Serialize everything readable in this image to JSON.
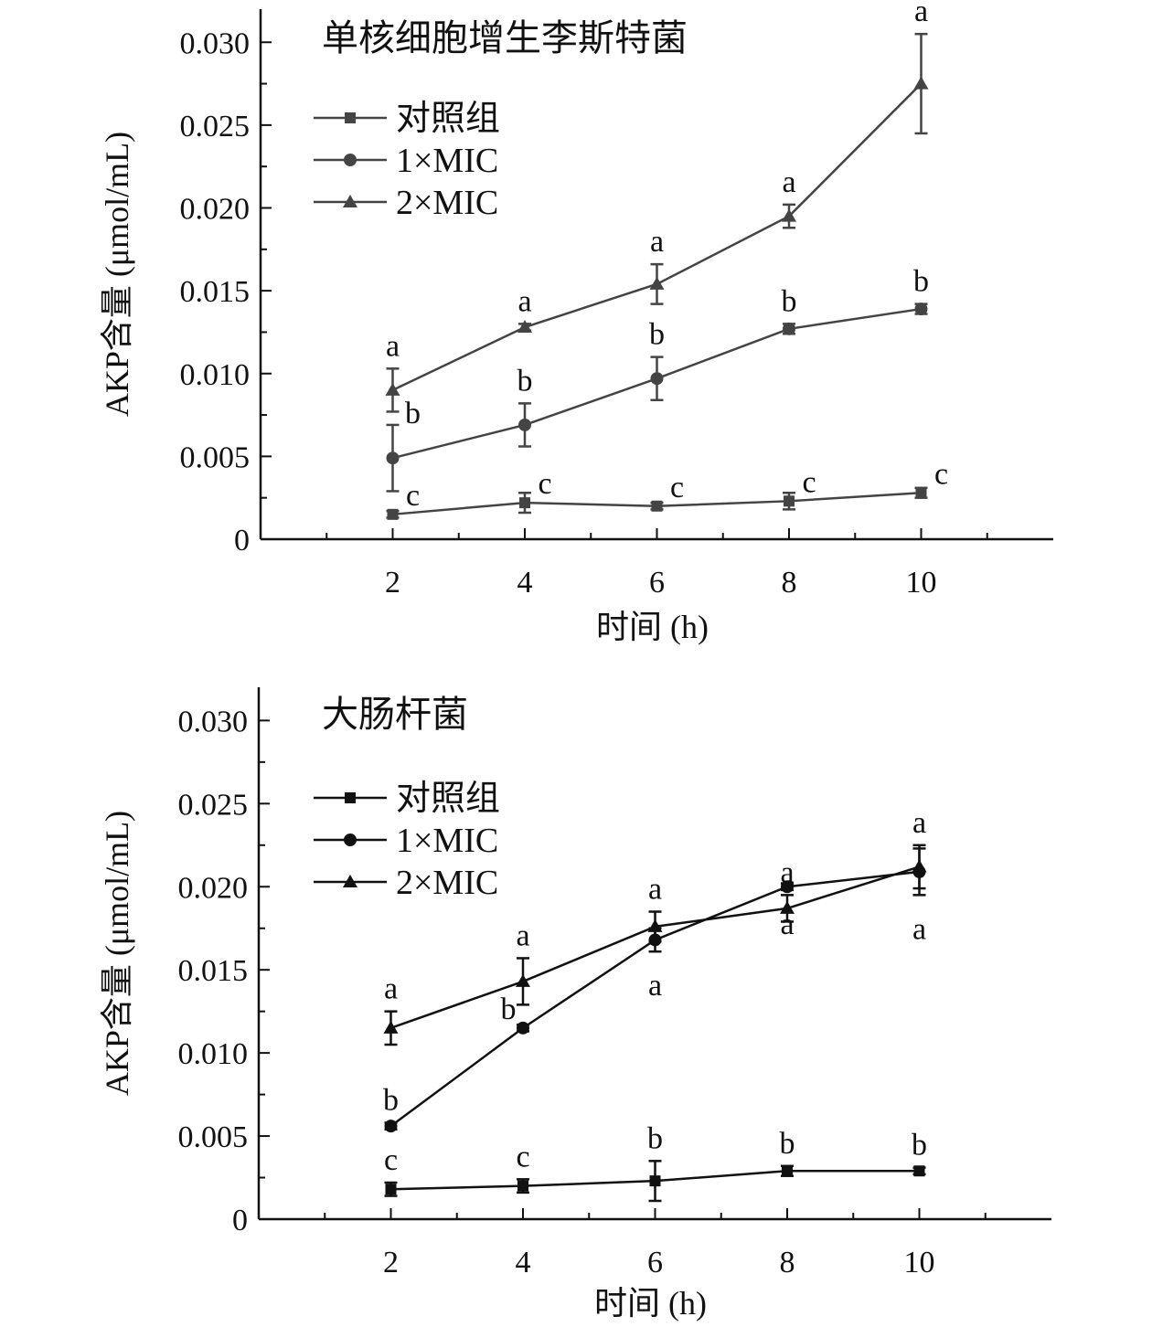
{
  "chart_data": [
    {
      "type": "line",
      "title": "单核细胞增生李斯特菌",
      "xlabel": "时间 (h)",
      "ylabel": "AKP含量 (μmol/mL)",
      "x": [
        2,
        4,
        6,
        8,
        10
      ],
      "xlim": [
        0,
        12
      ],
      "ylim": [
        0,
        0.032
      ],
      "xticks": [
        "2",
        "4",
        "6",
        "8",
        "10"
      ],
      "yticks": [
        "0",
        "0.005",
        "0.010",
        "0.015",
        "0.020",
        "0.025",
        "0.030"
      ],
      "ytick_values": [
        0,
        0.005,
        0.01,
        0.015,
        0.02,
        0.025,
        0.03
      ],
      "legend_position": "top-left",
      "color": "#444444",
      "series": [
        {
          "name": "对照组",
          "marker": "square",
          "values": [
            0.0015,
            0.0022,
            0.002,
            0.0023,
            0.0028
          ],
          "errors": [
            0.0002,
            0.0006,
            0.0002,
            0.0005,
            0.0003
          ],
          "labels": [
            "c",
            "c",
            "c",
            "c",
            "c"
          ]
        },
        {
          "name": "1×MIC",
          "marker": "circle",
          "values": [
            0.0049,
            0.0069,
            0.0097,
            0.0127,
            0.0139
          ],
          "errors": [
            0.002,
            0.0013,
            0.0013,
            0.0003,
            0.0003
          ],
          "labels": [
            "b",
            "b",
            "b",
            "b",
            "b"
          ]
        },
        {
          "name": "2×MIC",
          "marker": "triangle",
          "values": [
            0.009,
            0.0128,
            0.0154,
            0.0195,
            0.0275
          ],
          "errors": [
            0.0013,
            0.0002,
            0.0012,
            0.0007,
            0.003
          ],
          "labels": [
            "a",
            "a",
            "a",
            "a",
            "a"
          ]
        }
      ]
    },
    {
      "type": "line",
      "title": "大肠杆菌",
      "xlabel": "时间 (h)",
      "ylabel": "AKP含量 (μmol/mL)",
      "x": [
        2,
        4,
        6,
        8,
        10
      ],
      "xlim": [
        0,
        12
      ],
      "ylim": [
        0,
        0.032
      ],
      "xticks": [
        "2",
        "4",
        "6",
        "8",
        "10"
      ],
      "yticks": [
        "0",
        "0.005",
        "0.010",
        "0.015",
        "0.020",
        "0.025",
        "0.030"
      ],
      "ytick_values": [
        0,
        0.005,
        0.01,
        0.015,
        0.02,
        0.025,
        0.03
      ],
      "legend_position": "top-left",
      "color": "#111111",
      "series": [
        {
          "name": "对照组",
          "marker": "square",
          "values": [
            0.0018,
            0.002,
            0.0023,
            0.0029,
            0.0029
          ],
          "errors": [
            0.0004,
            0.0004,
            0.0012,
            0.0003,
            0.0002
          ],
          "labels": [
            "c",
            "c",
            "b",
            "b",
            "b"
          ]
        },
        {
          "name": "1×MIC",
          "marker": "circle",
          "values": [
            0.0056,
            0.0115,
            0.0168,
            0.02,
            0.0209
          ],
          "errors": [
            0.0002,
            0.0002,
            0.0007,
            0.0002,
            0.0014
          ],
          "labels": [
            "b",
            "b",
            "a",
            "a",
            "a"
          ]
        },
        {
          "name": "2×MIC",
          "marker": "triangle",
          "values": [
            0.0115,
            0.0143,
            0.0176,
            0.0187,
            0.0212
          ],
          "errors": [
            0.001,
            0.0014,
            0.0009,
            0.0008,
            0.0013
          ],
          "labels": [
            "a",
            "a",
            "a",
            "a",
            "a"
          ]
        }
      ]
    }
  ]
}
